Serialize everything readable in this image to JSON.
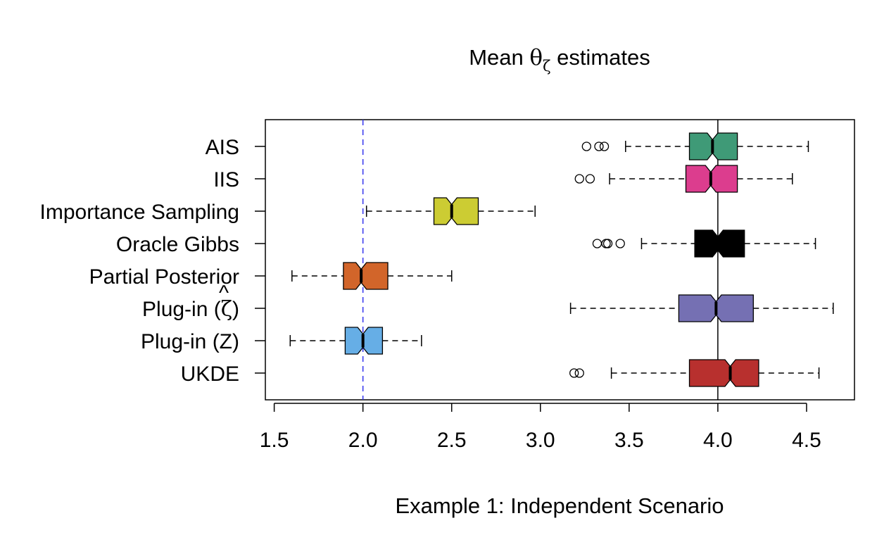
{
  "chart_data": {
    "type": "boxplot",
    "orientation": "horizontal",
    "notched": true,
    "title": {
      "prefix": "Mean ",
      "symbol": "θ",
      "subscript": "ζ",
      "suffix": " estimates"
    },
    "xlabel": "Example 1: Independent Scenario",
    "xlim": [
      1.45,
      4.77
    ],
    "xticks": [
      1.5,
      2.0,
      2.5,
      3.0,
      3.5,
      4.0,
      4.5
    ],
    "xtick_labels": [
      "1.5",
      "2.0",
      "2.5",
      "3.0",
      "3.5",
      "4.0",
      "4.5"
    ],
    "reference_lines": [
      {
        "name": "true-value-line",
        "value": 4.0,
        "color": "#000000",
        "style": "solid"
      },
      {
        "name": "baseline-line",
        "value": 2.0,
        "color": "#3333ee",
        "style": "dashed"
      }
    ],
    "series": [
      {
        "label": "AIS",
        "color": "#3f9a77",
        "whisker_low": 3.48,
        "q1": 3.84,
        "median": 3.97,
        "q3": 4.11,
        "whisker_high": 4.51,
        "notch": 0.03,
        "outliers": [
          3.26,
          3.33,
          3.36
        ]
      },
      {
        "label": "IIS",
        "color": "#dc3d8e",
        "whisker_low": 3.39,
        "q1": 3.82,
        "median": 3.96,
        "q3": 4.11,
        "whisker_high": 4.42,
        "notch": 0.03,
        "outliers": [
          3.22,
          3.28
        ]
      },
      {
        "label": "Importance Sampling",
        "color": "#cccc33",
        "whisker_low": 2.02,
        "q1": 2.4,
        "median": 2.5,
        "q3": 2.65,
        "whisker_high": 2.97,
        "notch": 0.03,
        "outliers": []
      },
      {
        "label": "Oracle Gibbs",
        "color": "#000000",
        "whisker_low": 3.57,
        "q1": 3.87,
        "median": 4.0,
        "q3": 4.15,
        "whisker_high": 4.55,
        "notch": 0.03,
        "outliers": [
          3.32,
          3.37,
          3.38,
          3.45
        ]
      },
      {
        "label": "Partial Posterior",
        "color": "#d2652a",
        "whisker_low": 1.6,
        "q1": 1.89,
        "median": 1.99,
        "q3": 2.14,
        "whisker_high": 2.5,
        "notch": 0.03,
        "outliers": []
      },
      {
        "label": "Plug-in (ζ̂)",
        "label_main": "Plug-in (",
        "label_symbol": "ζ",
        "label_hat": "^",
        "label_close": ")",
        "color": "#7570b3",
        "whisker_low": 3.17,
        "q1": 3.78,
        "median": 3.99,
        "q3": 4.2,
        "whisker_high": 4.65,
        "notch": 0.03,
        "outliers": []
      },
      {
        "label": "Plug-in (Z)",
        "color": "#66aee6",
        "whisker_low": 1.59,
        "q1": 1.9,
        "median": 2.0,
        "q3": 2.11,
        "whisker_high": 2.33,
        "notch": 0.03,
        "outliers": []
      },
      {
        "label": "UKDE",
        "color": "#b8302e",
        "whisker_low": 3.4,
        "q1": 3.84,
        "median": 4.07,
        "q3": 4.23,
        "whisker_high": 4.57,
        "notch": 0.03,
        "outliers": [
          3.19,
          3.22
        ]
      }
    ]
  }
}
